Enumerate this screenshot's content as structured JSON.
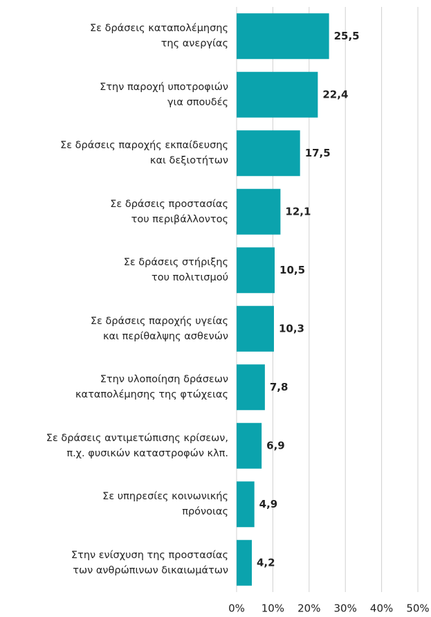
{
  "chart_data": {
    "type": "barh",
    "categories": [
      "Σε δράσεις καταπολέμησης\nτης ανεργίας",
      "Στην παροχή υποτροφιών\nγια σπουδές",
      "Σε δράσεις παροχής εκπαίδευσης\nκαι δεξιοτήτων",
      "Σε δράσεις προστασίας\nτου περιβάλλοντος",
      "Σε δράσεις στήριξης\nτου πολιτισμού",
      "Σε δράσεις παροχής υγείας\nκαι περίθαλψης ασθενών",
      "Στην υλοποίηση δράσεων\nκαταπολέμησης της φτώχειας",
      "Σε δράσεις αντιμετώπισης κρίσεων,\nπ.χ. φυσικών καταστροφών κλπ.",
      "Σε υπηρεσίες κοινωνικής\nπρόνοιας",
      "Στην ενίσχυση της προστασίας\nτων ανθρώπινων δικαιωμάτων"
    ],
    "values": [
      25.5,
      22.4,
      17.5,
      12.1,
      10.5,
      10.3,
      7.8,
      6.9,
      4.9,
      4.2
    ],
    "value_labels": [
      "25,5",
      "22,4",
      "17,5",
      "12,1",
      "10,5",
      "10,3",
      "7,8",
      "6,9",
      "4,9",
      "4,2"
    ],
    "color": "#0ba3ad",
    "xlim": [
      0,
      50
    ],
    "xticks": [
      {
        "value": 0,
        "label": "0%"
      },
      {
        "value": 10,
        "label": "10%"
      },
      {
        "value": 20,
        "label": "20%"
      },
      {
        "value": 30,
        "label": "30%"
      },
      {
        "value": 40,
        "label": "40%"
      },
      {
        "value": 50,
        "label": "50%"
      }
    ],
    "grid": true
  }
}
